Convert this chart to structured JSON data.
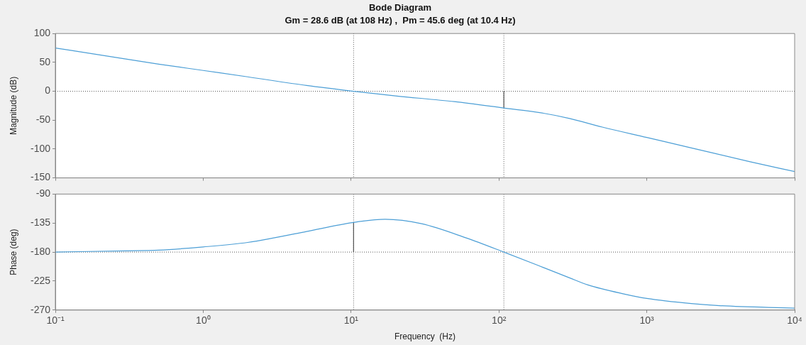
{
  "chart_data": [
    {
      "type": "line",
      "title": "Bode Diagram",
      "subtitle": "Gm = 28.6 dB (at 108 Hz) ,  Pm = 45.6 deg (at 10.4 Hz)",
      "ylabel": "Magnitude (dB)",
      "log": "x",
      "tick_labels": "y",
      "grid": false,
      "xlim": [
        0.1,
        10000
      ],
      "xticks": [
        {
          "value": 0.1,
          "label": null
        },
        {
          "value": 1,
          "label": null
        },
        {
          "value": 10,
          "label": null
        },
        {
          "value": 100,
          "label": null
        },
        {
          "value": 1000,
          "label": null
        },
        {
          "value": 10000,
          "label": null
        }
      ],
      "ylim": [
        -150,
        100
      ],
      "yticks": [
        -150,
        -100,
        -50,
        0,
        50,
        100
      ],
      "series": [
        {
          "color": "#4d9fd6",
          "x": [
            0.1,
            0.2,
            0.5,
            1,
            2,
            5,
            10.4,
            20,
            50,
            108,
            200,
            300,
            500,
            1000,
            2000,
            5000,
            10000
          ],
          "values": [
            75,
            63,
            47,
            36,
            25,
            10,
            0,
            -8,
            -18,
            -29,
            -38,
            -47,
            -62,
            -80,
            -98,
            -122,
            -139
          ]
        },
        {
          "color": "#555555",
          "x": [
            108,
            108
          ],
          "values": [
            0,
            -29
          ]
        }
      ],
      "ref_lines": [
        {
          "axis": "y",
          "value": 0,
          "line_style": "dotted",
          "color": "#555555"
        },
        {
          "axis": "x",
          "value": 10.4,
          "line_style": "dotted",
          "color": "#555555"
        },
        {
          "axis": "x",
          "value": 108,
          "line_style": "dotted",
          "color": "#555555"
        }
      ]
    },
    {
      "type": "line",
      "xlabel": "Frequency  (Hz)",
      "ylabel": "Phase (deg)",
      "log": "x",
      "grid": false,
      "xlim": [
        0.1,
        10000
      ],
      "xticks": [
        {
          "value": 0.1,
          "label": "10⁻¹"
        },
        {
          "value": 1,
          "label": "10⁰"
        },
        {
          "value": 10,
          "label": "10¹"
        },
        {
          "value": 100,
          "label": "10²"
        },
        {
          "value": 1000,
          "label": "10³"
        },
        {
          "value": 10000,
          "label": "10⁴"
        }
      ],
      "ylim": [
        -270,
        -90
      ],
      "yticks": [
        -270,
        -225,
        -180,
        -135,
        -90
      ],
      "series": [
        {
          "color": "#4d9fd6",
          "x": [
            0.1,
            0.3,
            0.5,
            1,
            2,
            3,
            5,
            10.4,
            17,
            30,
            60,
            108,
            200,
            300,
            400,
            700,
            1000,
            2000,
            3000,
            10000
          ],
          "values": [
            -180,
            -178,
            -177,
            -172,
            -165,
            -158,
            -148,
            -134,
            -129,
            -136,
            -158,
            -180,
            -204,
            -220,
            -231,
            -245,
            -252,
            -260,
            -263,
            -267
          ]
        },
        {
          "color": "#555555",
          "x": [
            10.4,
            10.4
          ],
          "values": [
            -180,
            -134
          ]
        }
      ],
      "ref_lines": [
        {
          "axis": "y",
          "value": -180,
          "line_style": "dotted",
          "color": "#555555"
        },
        {
          "axis": "x",
          "value": 10.4,
          "line_style": "dotted",
          "color": "#555555"
        },
        {
          "axis": "x",
          "value": 108,
          "line_style": "dotted",
          "color": "#555555"
        }
      ]
    }
  ]
}
